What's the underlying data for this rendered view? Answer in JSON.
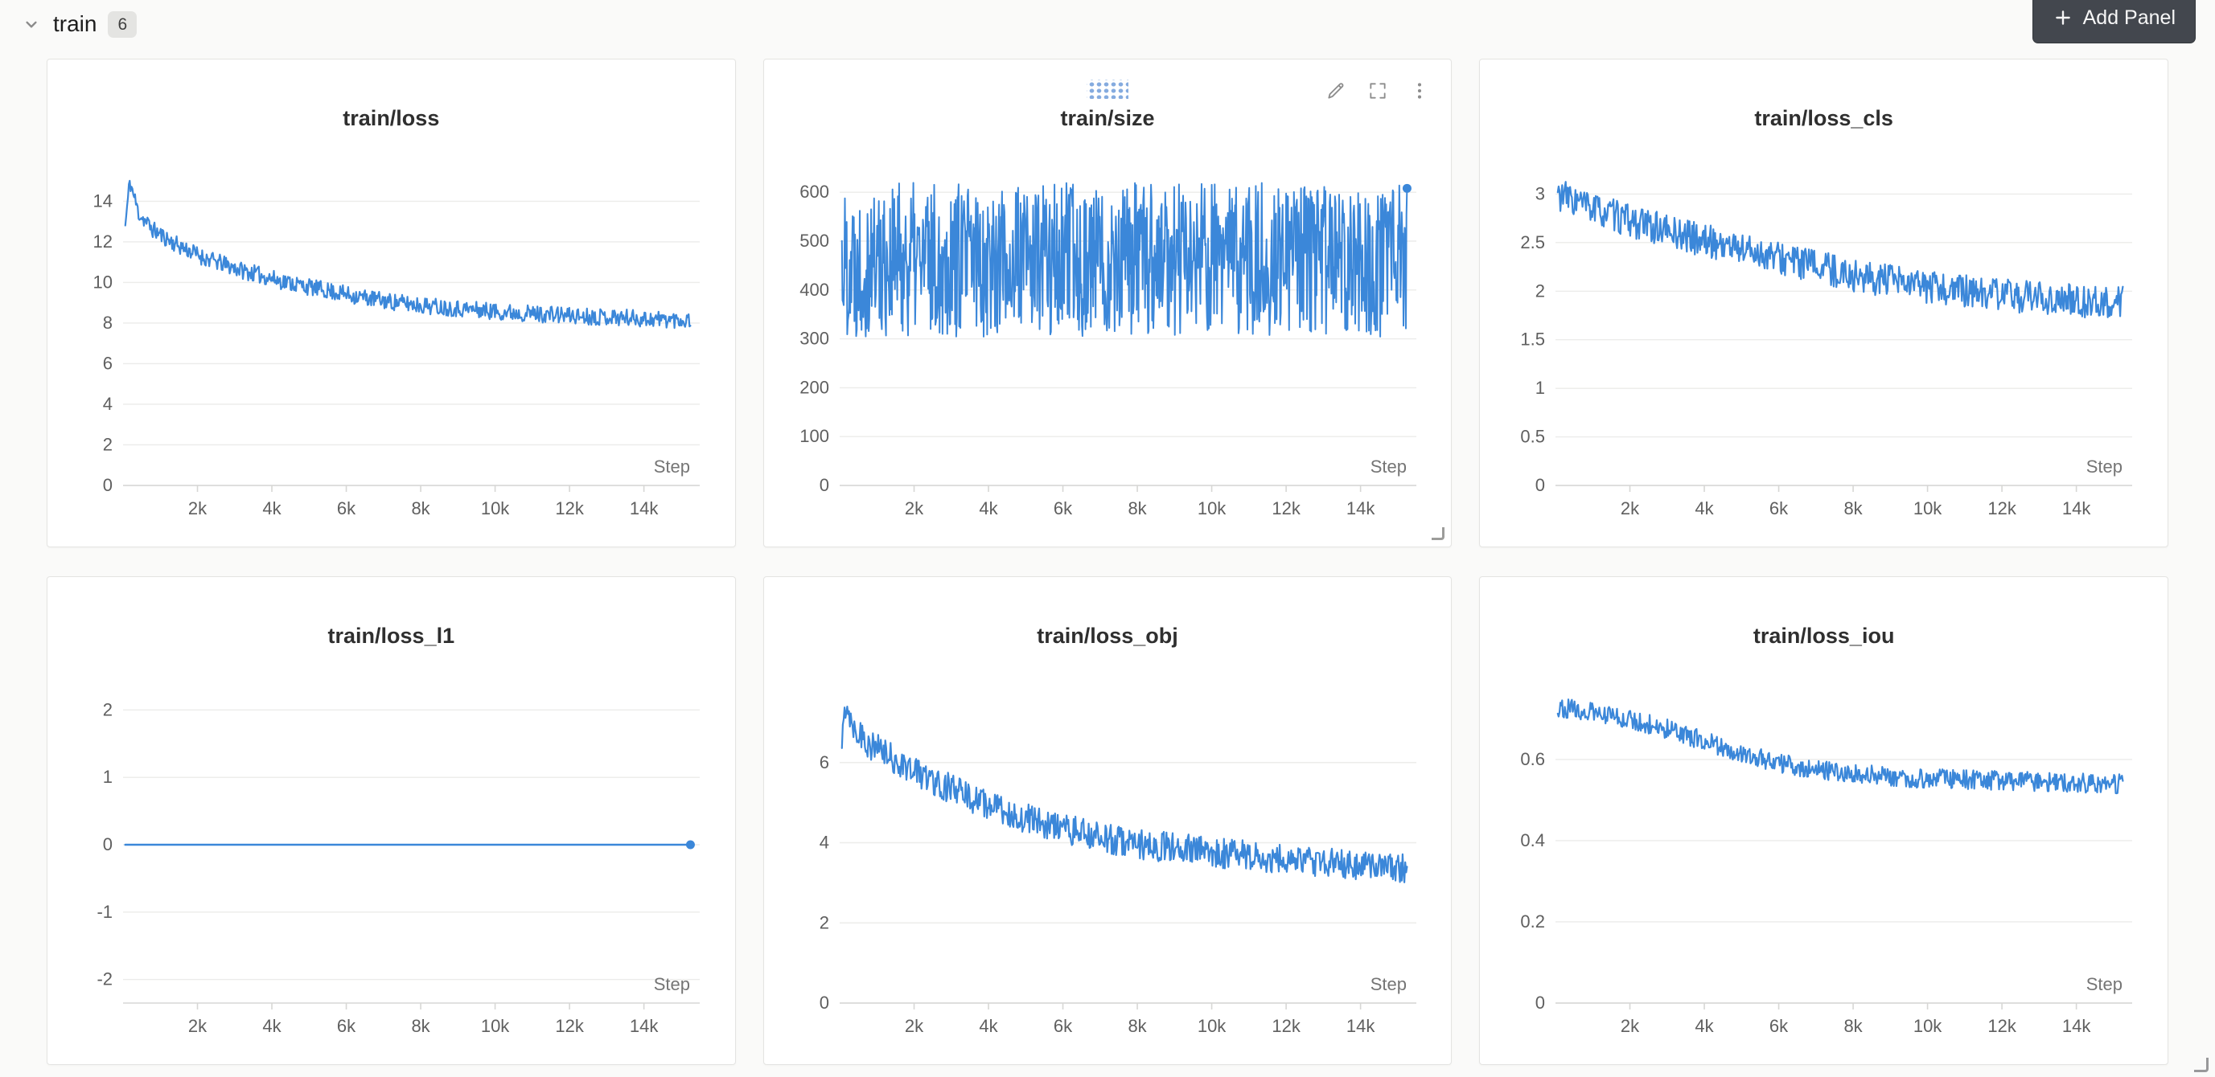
{
  "header": {
    "section_title": "train",
    "panel_count": "6",
    "add_panel_label": "Add Panel"
  },
  "icons": {
    "collapse": "chevron-down",
    "add": "plus",
    "edit": "pencil",
    "fullscreen": "expand",
    "menu": "kebab-vertical",
    "drag": "dot-grid",
    "resize": "corner"
  },
  "colors": {
    "line": "#3b87d9",
    "grid": "#ececea",
    "axis": "#d7d7d5",
    "tick_text": "#5f5f5f",
    "step_text": "#757575",
    "panel_bg": "#ffffff",
    "page_bg": "#fafaf9"
  },
  "x_axis": {
    "min": 0,
    "max": 15500,
    "label": "Step",
    "ticks": [
      {
        "v": 2000,
        "label": "2k"
      },
      {
        "v": 4000,
        "label": "4k"
      },
      {
        "v": 6000,
        "label": "6k"
      },
      {
        "v": 8000,
        "label": "8k"
      },
      {
        "v": 10000,
        "label": "10k"
      },
      {
        "v": 12000,
        "label": "12k"
      },
      {
        "v": 14000,
        "label": "14k"
      }
    ]
  },
  "chart_data": [
    {
      "type": "line",
      "title": "train/loss",
      "xlabel": "Step",
      "ylim": [
        0,
        15.6
      ],
      "yticks": [
        {
          "v": 0,
          "label": "0"
        },
        {
          "v": 2,
          "label": "2"
        },
        {
          "v": 4,
          "label": "4"
        },
        {
          "v": 6,
          "label": "6"
        },
        {
          "v": 8,
          "label": "8"
        },
        {
          "v": 10,
          "label": "10"
        },
        {
          "v": 12,
          "label": "12"
        },
        {
          "v": 14,
          "label": "14"
        }
      ],
      "trend": [
        [
          60,
          12.8
        ],
        [
          180,
          15.0
        ],
        [
          420,
          13.4
        ],
        [
          800,
          12.6
        ],
        [
          1400,
          11.9
        ],
        [
          2200,
          11.2
        ],
        [
          3200,
          10.6
        ],
        [
          4200,
          10.1
        ],
        [
          5200,
          9.7
        ],
        [
          6200,
          9.35
        ],
        [
          7200,
          9.05
        ],
        [
          8200,
          8.85
        ],
        [
          9200,
          8.7
        ],
        [
          10200,
          8.55
        ],
        [
          11200,
          8.45
        ],
        [
          12200,
          8.35
        ],
        [
          13200,
          8.3
        ],
        [
          14200,
          8.2
        ],
        [
          15250,
          8.15
        ]
      ],
      "noise": 0.42,
      "points": 640,
      "seed": 11,
      "x_start": 60,
      "x_end": 15250,
      "end_dot": false
    },
    {
      "type": "line",
      "title": "train/size",
      "xlabel": "Step",
      "ylim": [
        0,
        648
      ],
      "yticks": [
        {
          "v": 0,
          "label": "0"
        },
        {
          "v": 100,
          "label": "100"
        },
        {
          "v": 200,
          "label": "200"
        },
        {
          "v": 300,
          "label": "300"
        },
        {
          "v": 400,
          "label": "400"
        },
        {
          "v": 500,
          "label": "500"
        },
        {
          "v": 600,
          "label": "600"
        }
      ],
      "trend": [
        [
          60,
          462
        ],
        [
          15250,
          462
        ]
      ],
      "noise": 158,
      "clamp": [
        304,
        620
      ],
      "points": 950,
      "seed": 22,
      "x_start": 60,
      "x_end": 15250,
      "end_dot": true,
      "end_value": 608,
      "stroke_width": 2.0
    },
    {
      "type": "line",
      "title": "train/loss_cls",
      "xlabel": "Step",
      "ylim": [
        0,
        3.26
      ],
      "yticks": [
        {
          "v": 0,
          "label": "0"
        },
        {
          "v": 0.5,
          "label": "0.5"
        },
        {
          "v": 1,
          "label": "1"
        },
        {
          "v": 1.5,
          "label": "1.5"
        },
        {
          "v": 2,
          "label": "2"
        },
        {
          "v": 2.5,
          "label": "2.5"
        },
        {
          "v": 3,
          "label": "3"
        }
      ],
      "trend": [
        [
          60,
          3.0
        ],
        [
          400,
          2.95
        ],
        [
          1000,
          2.85
        ],
        [
          2000,
          2.72
        ],
        [
          3000,
          2.62
        ],
        [
          4000,
          2.52
        ],
        [
          5000,
          2.44
        ],
        [
          6000,
          2.34
        ],
        [
          7000,
          2.26
        ],
        [
          8000,
          2.16
        ],
        [
          9000,
          2.1
        ],
        [
          10000,
          2.04
        ],
        [
          11000,
          2.0
        ],
        [
          12000,
          1.96
        ],
        [
          13000,
          1.93
        ],
        [
          14000,
          1.9
        ],
        [
          15250,
          1.88
        ]
      ],
      "noise": 0.17,
      "points": 640,
      "seed": 33,
      "x_start": 60,
      "x_end": 15250,
      "end_dot": false
    },
    {
      "type": "line",
      "title": "train/loss_l1",
      "xlabel": "Step",
      "ylim": [
        -2.35,
        2.35
      ],
      "yticks": [
        {
          "v": -2,
          "label": "-2"
        },
        {
          "v": -1,
          "label": "-1"
        },
        {
          "v": 0,
          "label": "0"
        },
        {
          "v": 1,
          "label": "1"
        },
        {
          "v": 2,
          "label": "2"
        }
      ],
      "trend": [
        [
          60,
          0
        ],
        [
          15250,
          0
        ]
      ],
      "noise": 0,
      "points": 4,
      "seed": 44,
      "x_start": 60,
      "x_end": 15250,
      "end_dot": true,
      "end_value": 0,
      "stroke_width": 2.6
    },
    {
      "type": "line",
      "title": "train/loss_obj",
      "xlabel": "Step",
      "ylim": [
        0,
        7.9
      ],
      "yticks": [
        {
          "v": 0,
          "label": "0"
        },
        {
          "v": 2,
          "label": "2"
        },
        {
          "v": 4,
          "label": "4"
        },
        {
          "v": 6,
          "label": "6"
        }
      ],
      "trend": [
        [
          60,
          6.4
        ],
        [
          160,
          7.5
        ],
        [
          400,
          6.9
        ],
        [
          800,
          6.45
        ],
        [
          1400,
          6.1
        ],
        [
          2200,
          5.7
        ],
        [
          3200,
          5.25
        ],
        [
          4200,
          4.85
        ],
        [
          5200,
          4.55
        ],
        [
          6200,
          4.3
        ],
        [
          7200,
          4.1
        ],
        [
          8200,
          3.95
        ],
        [
          9200,
          3.85
        ],
        [
          10200,
          3.75
        ],
        [
          11200,
          3.65
        ],
        [
          12200,
          3.55
        ],
        [
          13200,
          3.5
        ],
        [
          14200,
          3.45
        ],
        [
          15250,
          3.35
        ]
      ],
      "noise": 0.38,
      "points": 640,
      "seed": 55,
      "x_start": 60,
      "x_end": 15250,
      "end_dot": false
    },
    {
      "type": "line",
      "title": "train/loss_iou",
      "xlabel": "Step",
      "ylim": [
        0,
        0.78
      ],
      "yticks": [
        {
          "v": 0,
          "label": "0"
        },
        {
          "v": 0.2,
          "label": "0.2"
        },
        {
          "v": 0.4,
          "label": "0.4"
        },
        {
          "v": 0.6,
          "label": "0.6"
        }
      ],
      "trend": [
        [
          60,
          0.73
        ],
        [
          1000,
          0.715
        ],
        [
          2000,
          0.7
        ],
        [
          3000,
          0.675
        ],
        [
          4000,
          0.645
        ],
        [
          5000,
          0.615
        ],
        [
          6000,
          0.59
        ],
        [
          7000,
          0.575
        ],
        [
          8000,
          0.565
        ],
        [
          9000,
          0.558
        ],
        [
          10000,
          0.553
        ],
        [
          11000,
          0.55
        ],
        [
          12000,
          0.548
        ],
        [
          13000,
          0.545
        ],
        [
          14000,
          0.542
        ],
        [
          15250,
          0.54
        ]
      ],
      "noise": 0.024,
      "points": 640,
      "seed": 66,
      "x_start": 60,
      "x_end": 15250,
      "end_dot": false
    }
  ]
}
